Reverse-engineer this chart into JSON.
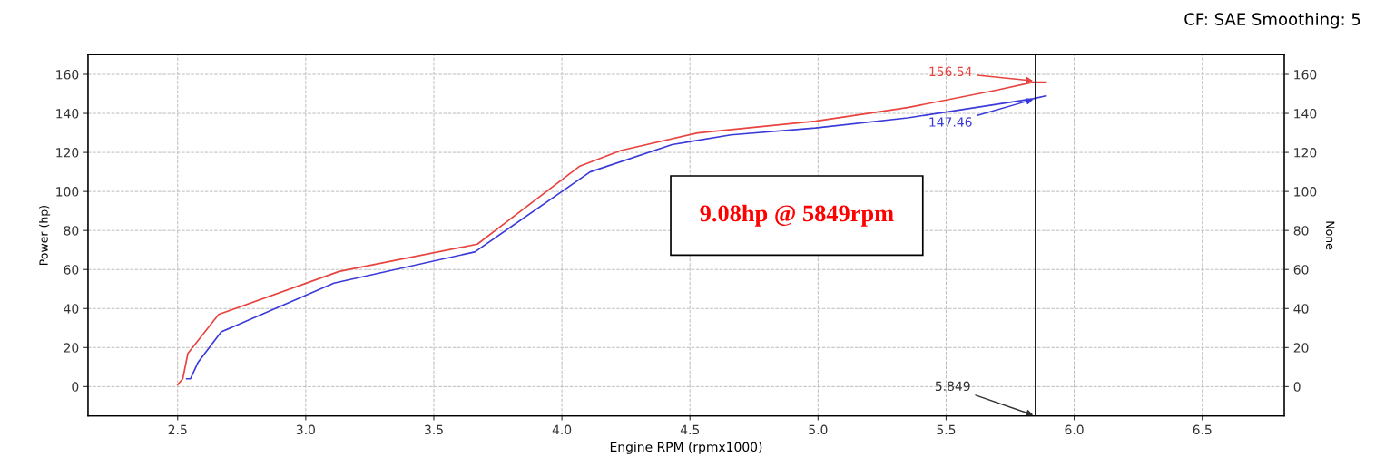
{
  "chart_data": {
    "type": "line",
    "xlabel": "Engine RPM (rpmx1000)",
    "ylabel": "Power (hp)",
    "y2label": "None",
    "series": [
      {
        "color": "#e8433f",
        "x": [
          2.5,
          2.52,
          2.54,
          2.66,
          3.13,
          3.67,
          4.07,
          4.23,
          4.53,
          4.99,
          5.35,
          5.7,
          5.84,
          5.89
        ],
        "values": [
          1,
          4,
          17,
          37,
          59,
          73,
          113,
          121,
          130,
          136,
          143,
          152,
          156,
          156
        ]
      },
      {
        "color": "#3a3ad8",
        "x": [
          2.535,
          2.55,
          2.58,
          2.67,
          3.11,
          3.66,
          4.11,
          4.43,
          4.66,
          4.99,
          5.35,
          5.84,
          5.89
        ],
        "values": [
          4,
          4,
          12.5,
          28,
          53,
          69,
          110,
          124,
          129,
          132.5,
          137.7,
          147.5,
          149
        ]
      }
    ],
    "xlim": [
      2.15,
      6.82
    ],
    "ylim": [
      -15,
      170
    ],
    "y2lim": [
      -15,
      170
    ],
    "xticks": [
      2.5,
      {
        "value": 3.0,
        "label": "3.0"
      },
      3.5,
      {
        "value": 4.0,
        "label": "4.0"
      },
      4.5,
      {
        "value": 5.0,
        "label": "5.0"
      },
      5.5,
      {
        "value": 6.0,
        "label": "6.0"
      },
      6.5
    ],
    "yticks": [
      0,
      20,
      40,
      60,
      80,
      100,
      120,
      140,
      160
    ],
    "y2ticks": [
      0,
      20,
      40,
      60,
      80,
      100,
      120,
      140,
      160
    ],
    "ref_lines": [
      {
        "axis": "x",
        "value": 5.849,
        "label": "5.849",
        "color": "#000000"
      }
    ],
    "annotations": [
      "CF: SAE Smoothing: 5",
      "9.08hp @ 5849rpm",
      {
        "text": "156.54",
        "x": 5.849,
        "y": 156.54
      },
      {
        "text": "147.46",
        "x": 5.849,
        "y": 147.46
      }
    ],
    "grid": true,
    "line_style": "solid"
  }
}
